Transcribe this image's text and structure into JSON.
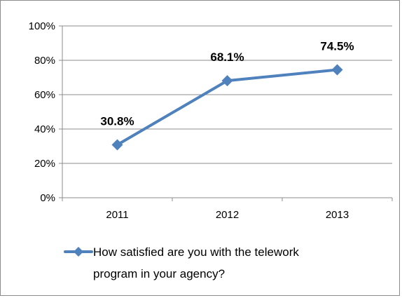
{
  "chart_data": {
    "type": "line",
    "categories": [
      "2011",
      "2012",
      "2013"
    ],
    "series": [
      {
        "name": "How satisfied are you with the telework program in your agency?",
        "values": [
          30.8,
          68.1,
          74.5
        ],
        "data_labels": [
          "30.8%",
          "68.1%",
          "74.5%"
        ]
      }
    ],
    "y_ticks": [
      "0%",
      "20%",
      "40%",
      "60%",
      "80%",
      "100%"
    ],
    "ylim": [
      0,
      100
    ],
    "grid": true,
    "legend_position": "bottom",
    "legend_lines": [
      "How satisfied are you with the telework",
      "program in your agency?"
    ],
    "colors": {
      "series": "#4f81bd",
      "grid": "#8c8c8c",
      "axis": "#8c8c8c"
    },
    "marker": "diamond"
  }
}
